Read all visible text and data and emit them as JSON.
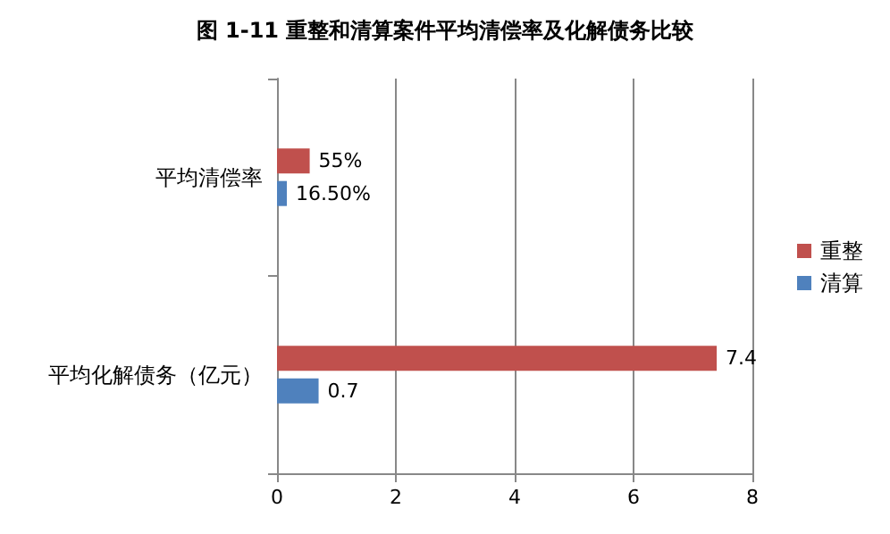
{
  "chart_data": {
    "type": "bar",
    "orientation": "horizontal",
    "title": "图 1-11 重整和清算案件平均清偿率及化解债务比较",
    "categories": [
      "平均清偿率",
      "平均化解债务（亿元）"
    ],
    "series": [
      {
        "name": "重整",
        "color": "#c0504d",
        "values": [
          0.55,
          7.4
        ],
        "value_labels": [
          "55%",
          "7.4"
        ]
      },
      {
        "name": "清算",
        "color": "#4f81bd",
        "values": [
          0.165,
          0.7
        ],
        "value_labels": [
          "16.50%",
          "0.7"
        ]
      }
    ],
    "xlim": [
      0,
      8
    ],
    "xticks": [
      0,
      2,
      4,
      6,
      8
    ],
    "grid": "x",
    "legend": "right"
  }
}
